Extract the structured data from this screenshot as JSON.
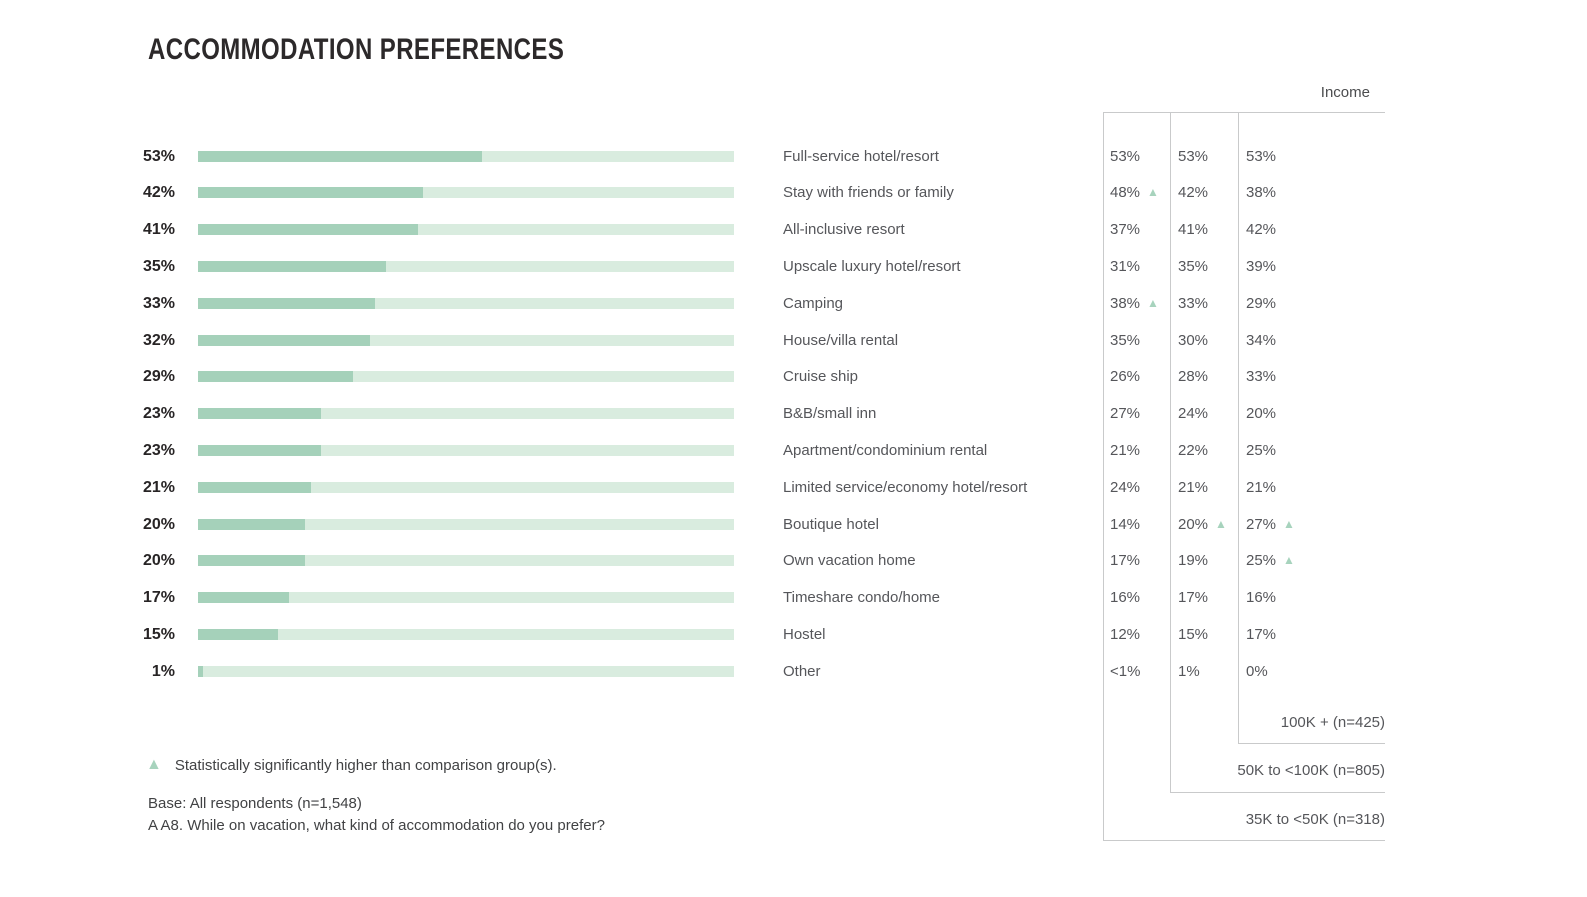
{
  "title": "ACCOMMODATION PREFERENCES",
  "income_header": "Income",
  "icons": {
    "sig_triangle": "▲"
  },
  "colors": {
    "bar_fill": "#a5d1ba",
    "bar_track": "#d9ecdf",
    "sig_triangle": "#a7d3bd",
    "table_border": "#c9cacb",
    "text_dark": "#272425",
    "text_gray": "#55565a"
  },
  "legend": {
    "note": "Statistically significantly higher than comparison group(s)."
  },
  "footnotes": {
    "base": "Base: All respondents (n=1,548)",
    "question": "A A8. While on vacation, what kind of accommodation do you prefer?"
  },
  "income_brackets": [
    {
      "label": "100K + (n=425)"
    },
    {
      "label": "50K to <100K (n=805)"
    },
    {
      "label": "35K to <50K (n=318)"
    }
  ],
  "chart_data": {
    "type": "bar",
    "orientation": "horizontal",
    "title": "ACCOMMODATION PREFERENCES",
    "xlim": [
      0,
      100
    ],
    "value_format": "percent",
    "grid": false,
    "legend_position": "bottom-left",
    "column_group_label": "Income",
    "columns": [
      "35K to <50K (n=318)",
      "50K to <100K (n=805)",
      "100K + (n=425)"
    ],
    "categories": [
      "Full-service hotel/resort",
      "Stay with friends or family",
      "All-inclusive resort",
      "Upscale luxury hotel/resort",
      "Camping",
      "House/villa rental",
      "Cruise ship",
      "B&B/small inn",
      "Apartment/condominium rental",
      "Limited service/economy hotel/resort",
      "Boutique hotel",
      "Own vacation home",
      "Timeshare condo/home",
      "Hostel",
      "Other"
    ],
    "values": [
      53,
      42,
      41,
      35,
      33,
      32,
      29,
      23,
      23,
      21,
      20,
      20,
      17,
      15,
      1
    ],
    "rows": [
      {
        "category": "Full-service hotel/resort",
        "pct_label": "53%",
        "value": 53,
        "cols": [
          {
            "text": "53%",
            "sig": false
          },
          {
            "text": "53%",
            "sig": false
          },
          {
            "text": "53%",
            "sig": false
          }
        ]
      },
      {
        "category": "Stay with friends or family",
        "pct_label": "42%",
        "value": 42,
        "cols": [
          {
            "text": "48%",
            "sig": true
          },
          {
            "text": "42%",
            "sig": false
          },
          {
            "text": "38%",
            "sig": false
          }
        ]
      },
      {
        "category": "All-inclusive resort",
        "pct_label": "41%",
        "value": 41,
        "cols": [
          {
            "text": "37%",
            "sig": false
          },
          {
            "text": "41%",
            "sig": false
          },
          {
            "text": "42%",
            "sig": false
          }
        ]
      },
      {
        "category": "Upscale luxury hotel/resort",
        "pct_label": "35%",
        "value": 35,
        "cols": [
          {
            "text": "31%",
            "sig": false
          },
          {
            "text": "35%",
            "sig": false
          },
          {
            "text": "39%",
            "sig": false
          }
        ]
      },
      {
        "category": "Camping",
        "pct_label": "33%",
        "value": 33,
        "cols": [
          {
            "text": "38%",
            "sig": true
          },
          {
            "text": "33%",
            "sig": false
          },
          {
            "text": "29%",
            "sig": false
          }
        ]
      },
      {
        "category": "House/villa rental",
        "pct_label": "32%",
        "value": 32,
        "cols": [
          {
            "text": "35%",
            "sig": false
          },
          {
            "text": "30%",
            "sig": false
          },
          {
            "text": "34%",
            "sig": false
          }
        ]
      },
      {
        "category": "Cruise ship",
        "pct_label": "29%",
        "value": 29,
        "cols": [
          {
            "text": "26%",
            "sig": false
          },
          {
            "text": "28%",
            "sig": false
          },
          {
            "text": "33%",
            "sig": false
          }
        ]
      },
      {
        "category": "B&B/small inn",
        "pct_label": "23%",
        "value": 23,
        "cols": [
          {
            "text": "27%",
            "sig": false
          },
          {
            "text": "24%",
            "sig": false
          },
          {
            "text": "20%",
            "sig": false
          }
        ]
      },
      {
        "category": "Apartment/condominium rental",
        "pct_label": "23%",
        "value": 23,
        "cols": [
          {
            "text": "21%",
            "sig": false
          },
          {
            "text": "22%",
            "sig": false
          },
          {
            "text": "25%",
            "sig": false
          }
        ]
      },
      {
        "category": "Limited service/economy hotel/resort",
        "pct_label": "21%",
        "value": 21,
        "cols": [
          {
            "text": "24%",
            "sig": false
          },
          {
            "text": "21%",
            "sig": false
          },
          {
            "text": "21%",
            "sig": false
          }
        ]
      },
      {
        "category": "Boutique hotel",
        "pct_label": "20%",
        "value": 20,
        "cols": [
          {
            "text": "14%",
            "sig": false
          },
          {
            "text": "20%",
            "sig": true
          },
          {
            "text": "27%",
            "sig": true
          }
        ]
      },
      {
        "category": "Own vacation home",
        "pct_label": "20%",
        "value": 20,
        "cols": [
          {
            "text": "17%",
            "sig": false
          },
          {
            "text": "19%",
            "sig": false
          },
          {
            "text": "25%",
            "sig": true
          }
        ]
      },
      {
        "category": "Timeshare condo/home",
        "pct_label": "17%",
        "value": 17,
        "cols": [
          {
            "text": "16%",
            "sig": false
          },
          {
            "text": "17%",
            "sig": false
          },
          {
            "text": "16%",
            "sig": false
          }
        ]
      },
      {
        "category": "Hostel",
        "pct_label": "15%",
        "value": 15,
        "cols": [
          {
            "text": "12%",
            "sig": false
          },
          {
            "text": "15%",
            "sig": false
          },
          {
            "text": "17%",
            "sig": false
          }
        ]
      },
      {
        "category": "Other",
        "pct_label": "1%",
        "value": 1,
        "cols": [
          {
            "text": "<1%",
            "sig": false
          },
          {
            "text": "1%",
            "sig": false
          },
          {
            "text": "0%",
            "sig": false
          }
        ]
      }
    ]
  }
}
